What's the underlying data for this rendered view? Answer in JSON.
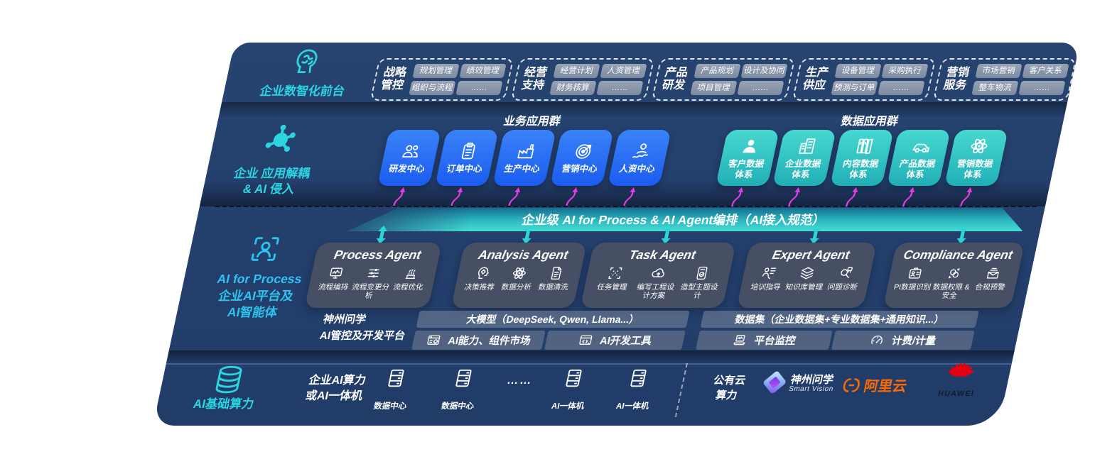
{
  "front_layer": {
    "label": "企业数智化前台",
    "icon": "brain-icon",
    "groups": [
      {
        "title": "战略\n管控",
        "chips": [
          "规划管理",
          "绩效管理",
          "组织与流程",
          "……"
        ]
      },
      {
        "title": "经营\n支持",
        "chips": [
          "经营计划",
          "人资管理",
          "财务核算",
          "……"
        ]
      },
      {
        "title": "产品\n研发",
        "chips": [
          "产品规划",
          "设计及协同",
          "项目管理",
          "……"
        ]
      },
      {
        "title": "生产\n供应",
        "chips": [
          "设备管理",
          "采购执行",
          "预测与订单",
          "……"
        ]
      },
      {
        "title": "营销\n服务",
        "chips": [
          "市场营销",
          "客户关系",
          "整车物流",
          "……"
        ]
      }
    ]
  },
  "app_layer": {
    "label_line1": "企业 应用解耦",
    "label_line2": "& AI 侵入",
    "icon": "molecule-icon",
    "business_group": {
      "title": "业务应用群",
      "tiles": [
        {
          "label": "研发中心",
          "icon": "team-icon"
        },
        {
          "label": "订单中心",
          "icon": "clipboard-icon"
        },
        {
          "label": "生产中心",
          "icon": "factory-icon"
        },
        {
          "label": "营销中心",
          "icon": "target-icon"
        },
        {
          "label": "人资中心",
          "icon": "hr-icon"
        }
      ]
    },
    "data_group": {
      "title": "数据应用群",
      "tiles": [
        {
          "label": "客户数据\n体系",
          "icon": "person-icon"
        },
        {
          "label": "企业数据\n体系",
          "icon": "building-icon"
        },
        {
          "label": "内容数据\n体系",
          "icon": "books-icon"
        },
        {
          "label": "产品数据\n体系",
          "icon": "car-icon"
        },
        {
          "label": "营销数据\n体系",
          "icon": "atom-icon"
        }
      ]
    }
  },
  "orchestration_bar": {
    "label": "企业级 AI for Process & AI Agent编排（AI接入规范）"
  },
  "agent_layer": {
    "icon": "person-scan-icon",
    "label_lines": [
      "AI for Process",
      "企业AI平台及",
      "AI智能体"
    ],
    "agents": [
      {
        "title": "Process Agent",
        "items": [
          {
            "label": "流程编排",
            "icon": "monitor-icon"
          },
          {
            "label": "流程变更分析",
            "icon": "sliders-icon"
          },
          {
            "label": "流程优化",
            "icon": "optimize-icon"
          }
        ]
      },
      {
        "title": "Analysis Agent",
        "items": [
          {
            "label": "决策推荐",
            "icon": "decision-icon"
          },
          {
            "label": "数据分析",
            "icon": "atom-icon"
          },
          {
            "label": "数据清洗",
            "icon": "document-icon"
          }
        ]
      },
      {
        "title": "Task Agent",
        "items": [
          {
            "label": "任务管理",
            "icon": "task-grid-icon"
          },
          {
            "label": "编写工程设计方案",
            "icon": "cloud-icon"
          },
          {
            "label": "造型主题设计",
            "icon": "design-icon"
          }
        ]
      },
      {
        "title": "Expert Agent",
        "items": [
          {
            "label": "培训指导",
            "icon": "training-icon"
          },
          {
            "label": "知识库管理",
            "icon": "layers-icon"
          },
          {
            "label": "问题诊断",
            "icon": "diagnose-icon"
          }
        ]
      },
      {
        "title": "Compliance Agent",
        "items": [
          {
            "label": "PI数据识别",
            "icon": "idcard-icon"
          },
          {
            "label": "数据权限 &\n安全",
            "icon": "permission-icon"
          },
          {
            "label": "合规预警",
            "icon": "alert-icon"
          }
        ]
      }
    ]
  },
  "platform": {
    "label_line1": "神州问学",
    "label_line2": "AI管控及开发平台",
    "model_bar": "大模型（DeepSeek, Qwen, Llama...）",
    "model_cells": [
      {
        "label": "AI能力、组件市场",
        "icon": "components-icon"
      },
      {
        "label": "AI开发工具",
        "icon": "devtools-icon"
      }
    ],
    "dataset_bar": "数据集（企业数据集+专业数据集+通用知识...）",
    "dataset_cells": [
      {
        "label": "平台监控",
        "icon": "laptop-icon"
      },
      {
        "label": "计费/计量",
        "icon": "gauge-icon"
      }
    ]
  },
  "infra_layer": {
    "label": "AI基础算力",
    "icon": "database-icon",
    "compute_label": "企业AI算力\n或AI一体机",
    "nodes": [
      {
        "label": "数据中心",
        "icon": "server-icon"
      },
      {
        "label": "数据中心",
        "icon": "server-icon"
      },
      {
        "label": "……",
        "icon": null
      },
      {
        "label": "AI一体机",
        "icon": "server-icon"
      },
      {
        "label": "AI一体机",
        "icon": "server-icon"
      }
    ],
    "public_cloud": "公有云\n算力",
    "partners": [
      {
        "name": "神州问学",
        "sub": "Smart Vision"
      },
      {
        "name": "阿里云"
      },
      {
        "name": "HUAWEI"
      }
    ]
  },
  "colors": {
    "background_navy": "#24406E",
    "accent_cyan": "#2BD5E2",
    "blue_tile": "#1E63F2",
    "teal_tile": "#2BC0C2",
    "orchestration_teal": "#3ED8D2",
    "magenta_arrow": "#E23EE2",
    "chip_gray": "#8591A5",
    "agent_box": "#475064",
    "alibaba_orange": "#FF6A00",
    "huawei_red": "#E60012"
  }
}
